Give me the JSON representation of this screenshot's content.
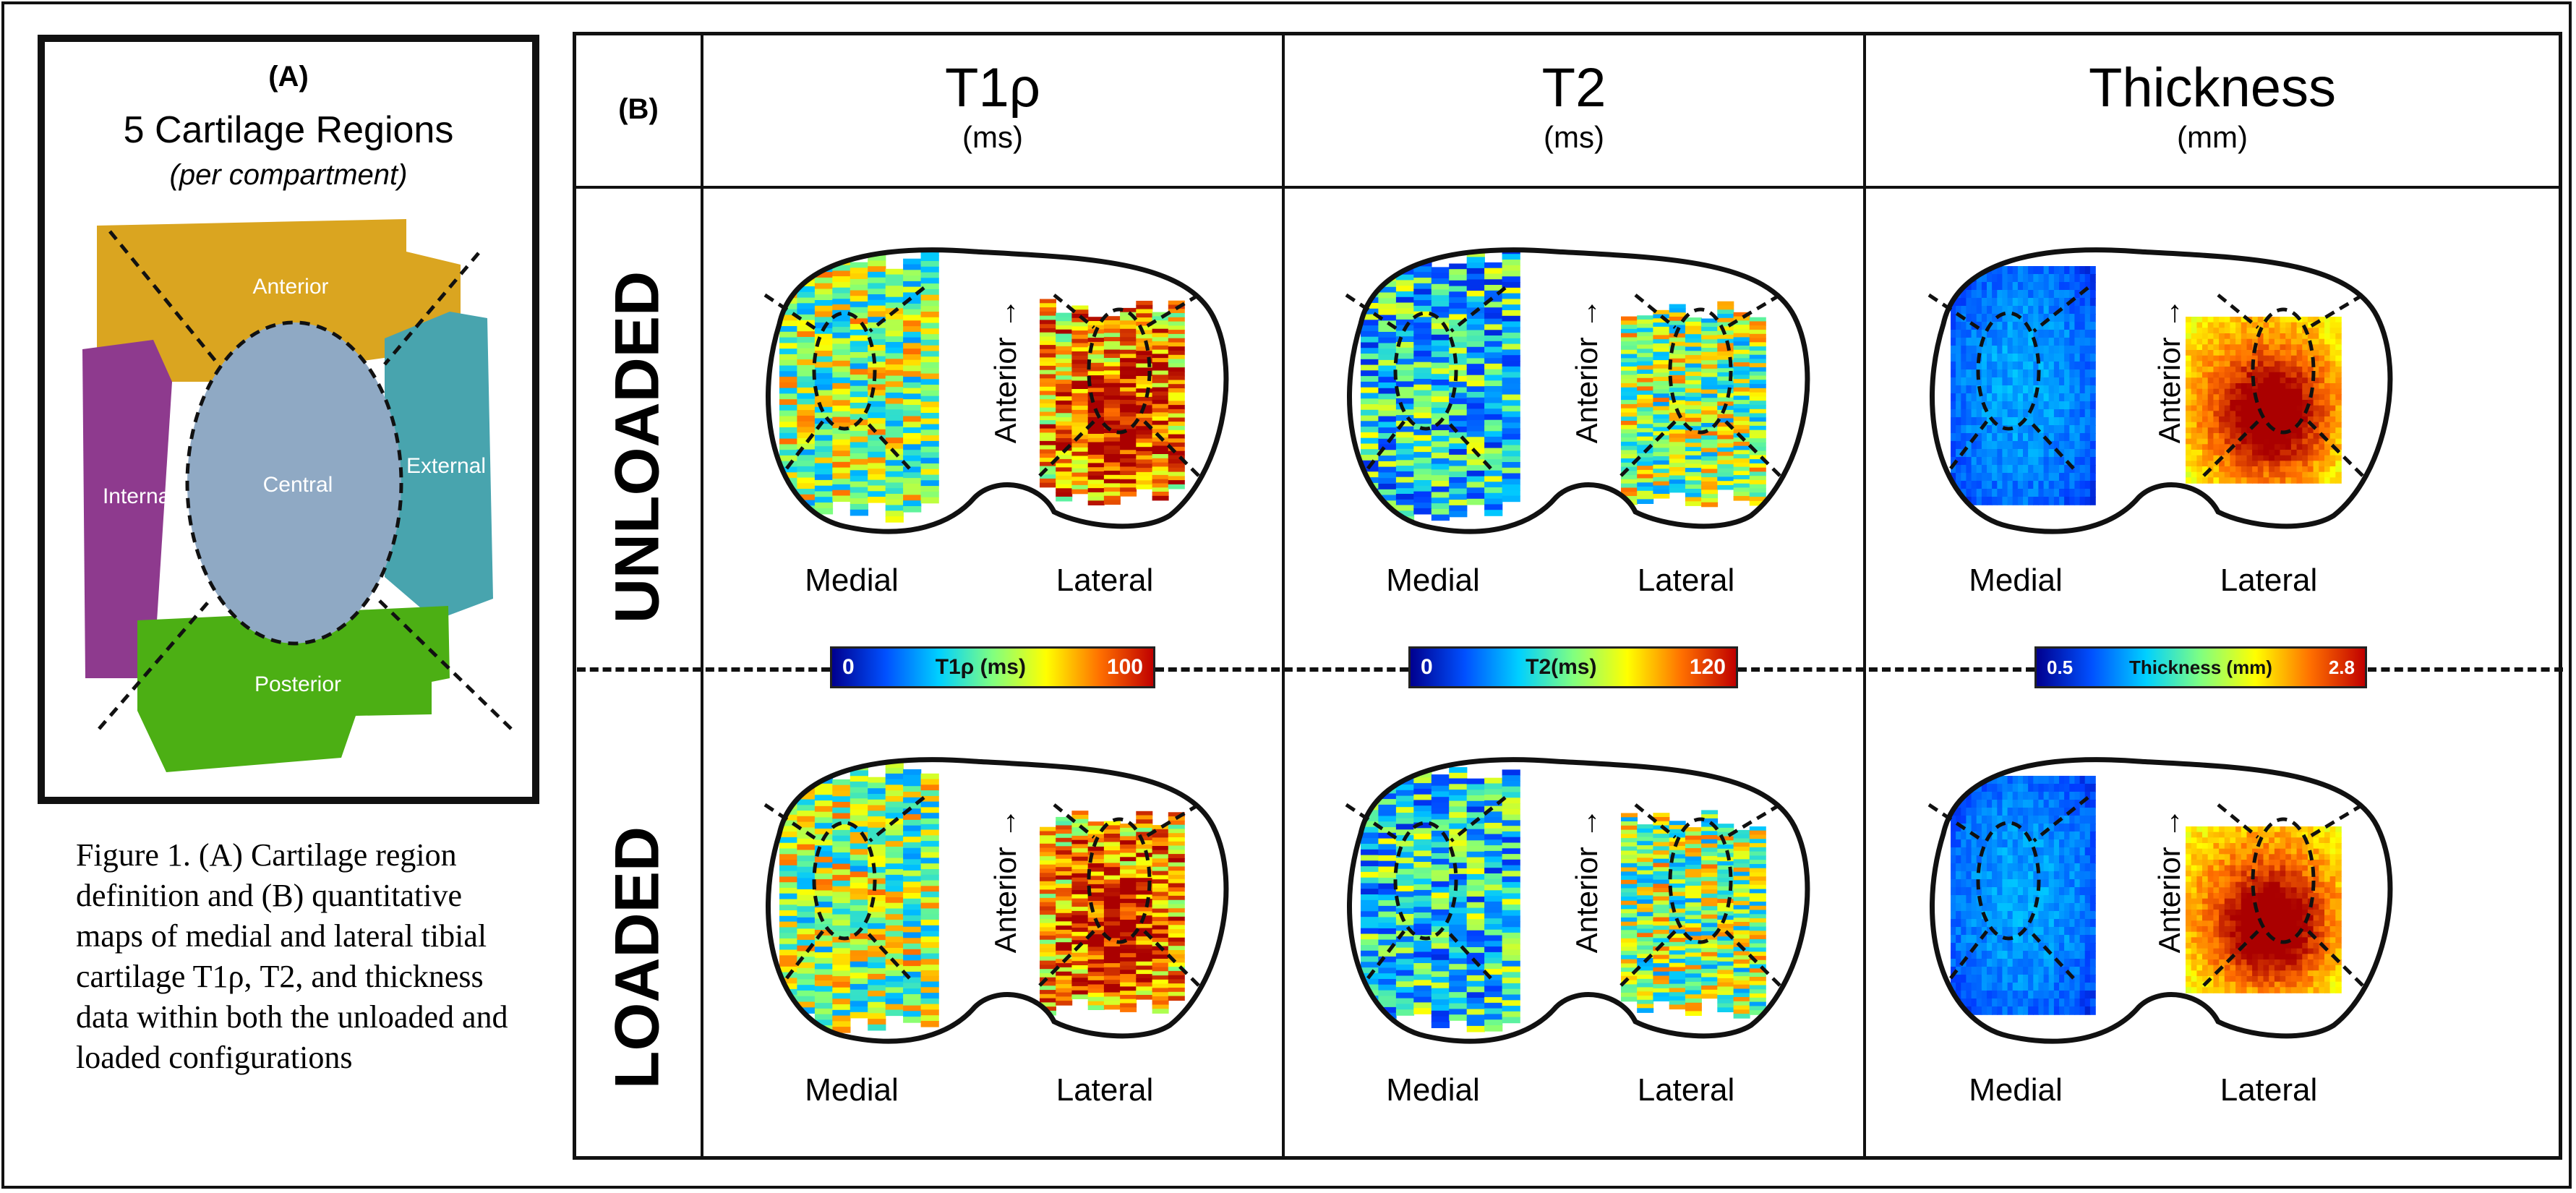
{
  "panel_a": {
    "label": "(A)",
    "title": "5 Cartilage Regions",
    "subtitle": "(per compartment)",
    "regions": {
      "anterior": "Anterior",
      "internal": "Internal",
      "central": "Central",
      "external": "External",
      "posterior": "Posterior"
    },
    "colors": {
      "anterior": "#DAA520",
      "internal": "#8E3A8E",
      "central": "#8FA9C4",
      "external": "#48A4AE",
      "posterior": "#4CAF14"
    }
  },
  "caption": "Figure 1. (A) Cartilage region definition and (B) quantitative maps of medial and lateral tibial cartilage T1ρ, T2, and thickness data within both the unloaded and loaded configurations",
  "panel_b": {
    "label": "(B)",
    "columns": [
      {
        "title": "T1ρ",
        "unit": "(ms)"
      },
      {
        "title": "T2",
        "unit": "(ms)"
      },
      {
        "title": "Thickness",
        "unit": "(mm)"
      }
    ],
    "rows": [
      "UNLOADED",
      "LOADED"
    ],
    "medial_label": "Medial",
    "lateral_label": "Lateral",
    "anterior_label": "Anterior →",
    "colorbars": [
      {
        "min": "0",
        "label": "T1ρ (ms)",
        "max": "100"
      },
      {
        "min": "0",
        "label": "T2(ms)",
        "max": "120"
      },
      {
        "min": "0.5",
        "label": "Thickness (mm)",
        "max": "2.8"
      }
    ]
  }
}
